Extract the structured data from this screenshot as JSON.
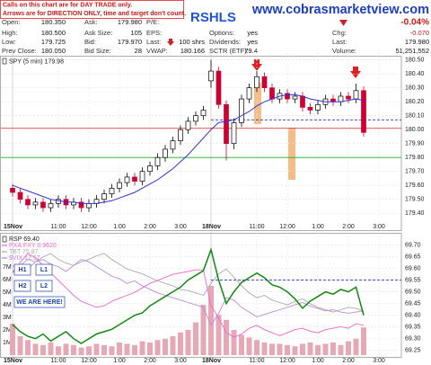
{
  "header": {
    "disclaimer": [
      "Calls on this chart are for DAY TRADE only.",
      "Arrows are for DIRECTION ONLY, time and target don't count."
    ],
    "title": "RSHLS",
    "site": "www.cobrasmarketview.com",
    "columns": [
      [
        {
          "label": "Open:",
          "value": "180.350"
        },
        {
          "label": "High:",
          "value": "180.500"
        },
        {
          "label": "Low:",
          "value": "179.725"
        },
        {
          "label": "Prev Close:",
          "value": "180.050"
        }
      ],
      [
        {
          "label": "Ask:",
          "value": "179.980"
        },
        {
          "label": "Ask Size:",
          "value": "105"
        },
        {
          "label": "Bid:",
          "value": "179.970"
        },
        {
          "label": "Bid Size:",
          "value": "28"
        }
      ],
      [
        {
          "label": "P/E:"
        },
        {
          "label": "EPS:"
        },
        {
          "label": "Last:",
          "value": "100 shrs"
        },
        {
          "label": "VWAP:",
          "value": "180.166"
        }
      ],
      [
        {
          "label": "Options:",
          "value": "yes"
        },
        {
          "label": "Dividends:",
          "value": "yes"
        },
        {
          "label": "SCTR (ETF):",
          "value": "79.4"
        }
      ],
      [
        {
          "value": "-0.04%"
        },
        {
          "label": "Chg:",
          "value": "-0.070"
        },
        {
          "label": "Last:",
          "value": "179.980"
        },
        {
          "label": "Volume:",
          "value": "51,251,552"
        }
      ]
    ]
  },
  "chart_data": [
    {
      "type": "candlestick",
      "legend": "SPY (5 min) 179.98",
      "categories": [
        "15Nov",
        null,
        null,
        null,
        null,
        null,
        "11:00",
        null,
        null,
        null,
        "12:00",
        null,
        null,
        null,
        "1:00",
        null,
        null,
        null,
        "2:00",
        null,
        null,
        null,
        "3:00",
        null,
        null,
        null,
        "18Nov",
        null,
        null,
        null,
        null,
        null,
        "11:00",
        null,
        null,
        null,
        "12:00",
        null,
        null,
        null,
        "1:00",
        null,
        null,
        null,
        "2:00",
        null,
        null,
        null,
        "3:00"
      ],
      "open": [
        179.58,
        179.55,
        179.5,
        179.46,
        179.48,
        179.44,
        179.47,
        179.5,
        179.46,
        179.48,
        179.44,
        179.47,
        179.5,
        179.54,
        179.58,
        179.62,
        179.66,
        179.63,
        179.7,
        179.74,
        179.8,
        179.86,
        179.92,
        180.0,
        180.06,
        180.1,
        180.35,
        180.42,
        180.18,
        179.9,
        180.05,
        180.22,
        180.3,
        180.38,
        180.3,
        180.22,
        180.26,
        180.22,
        180.24,
        180.16,
        180.14,
        180.18,
        180.22,
        180.2,
        180.24,
        180.22,
        180.28,
        null,
        null
      ],
      "high": [
        179.61,
        179.58,
        179.53,
        179.51,
        179.51,
        179.5,
        179.53,
        179.53,
        179.51,
        179.51,
        179.5,
        179.53,
        179.57,
        179.61,
        179.65,
        179.69,
        179.69,
        179.73,
        179.77,
        179.83,
        179.89,
        179.95,
        180.03,
        180.09,
        180.13,
        180.17,
        180.5,
        180.45,
        180.21,
        180.08,
        180.25,
        180.33,
        180.42,
        180.41,
        180.33,
        180.29,
        180.29,
        180.27,
        180.27,
        180.19,
        180.21,
        180.25,
        180.25,
        180.27,
        180.27,
        180.33,
        180.31,
        null,
        null
      ],
      "low": [
        179.52,
        179.47,
        179.43,
        179.43,
        179.41,
        179.41,
        179.44,
        179.43,
        179.43,
        179.41,
        179.41,
        179.44,
        179.47,
        179.51,
        179.55,
        179.59,
        179.6,
        179.6,
        179.67,
        179.71,
        179.77,
        179.83,
        179.89,
        179.97,
        180.03,
        180.07,
        180.3,
        180.15,
        179.78,
        179.86,
        180.02,
        180.19,
        180.27,
        180.27,
        180.19,
        180.19,
        180.19,
        180.19,
        180.13,
        180.11,
        180.11,
        180.15,
        180.17,
        180.17,
        180.19,
        180.19,
        179.95,
        null,
        null
      ],
      "close": [
        179.55,
        179.5,
        179.46,
        179.48,
        179.44,
        179.47,
        179.5,
        179.46,
        179.48,
        179.44,
        179.47,
        179.5,
        179.54,
        179.58,
        179.62,
        179.66,
        179.63,
        179.7,
        179.74,
        179.8,
        179.86,
        179.92,
        180.0,
        180.06,
        180.1,
        180.14,
        180.42,
        180.18,
        179.9,
        180.05,
        180.22,
        180.3,
        180.38,
        180.3,
        180.22,
        180.26,
        180.22,
        180.24,
        180.16,
        180.14,
        180.18,
        180.22,
        180.2,
        180.24,
        180.22,
        180.28,
        179.98,
        null,
        null
      ],
      "ma": {
        "color": "#3333cc",
        "values": [
          179.6,
          179.58,
          179.56,
          179.54,
          179.52,
          179.5,
          179.49,
          179.48,
          179.48,
          179.47,
          179.47,
          179.47,
          179.48,
          179.49,
          179.51,
          179.53,
          179.55,
          179.58,
          179.61,
          179.64,
          179.68,
          179.72,
          179.77,
          179.82,
          179.88,
          179.94,
          180.0,
          180.05,
          180.06,
          180.07,
          180.1,
          180.13,
          180.17,
          180.2,
          180.22,
          180.24,
          180.25,
          180.25,
          180.24,
          180.22,
          180.21,
          180.2,
          180.2,
          180.2,
          180.21,
          180.22,
          180.21,
          null,
          null
        ]
      },
      "up_color": "#000000",
      "down_color": "#cc0033",
      "ylim": [
        179.35,
        180.53
      ],
      "yticks": [
        {
          "value": 180.5,
          "label": "180.50"
        },
        {
          "value": 180.4,
          "label": "180.40"
        },
        {
          "value": 180.3,
          "label": "180.30"
        },
        {
          "value": 180.2,
          "label": "180.20"
        },
        {
          "value": 180.1,
          "label": "180.10"
        },
        {
          "value": 180,
          "label": "180.00"
        },
        {
          "value": 179.9,
          "label": "179.90"
        },
        {
          "value": 179.8,
          "label": "179.80"
        },
        {
          "value": 179.7,
          "label": "179.70"
        },
        {
          "value": 179.6,
          "label": "179.60"
        },
        {
          "value": 179.5,
          "label": "179.50"
        },
        {
          "value": 179.4,
          "label": "179.40"
        }
      ],
      "levels": [
        {
          "value": 180.01,
          "color": "#e04040"
        },
        {
          "value": 180.07,
          "color": "#3030c0",
          "dash": true
        },
        {
          "value": 179.8,
          "color": "#22aa22"
        }
      ],
      "grid": true
    },
    {
      "type": "line",
      "categories": [
        "15Nov",
        null,
        null,
        null,
        null,
        null,
        "11:00",
        null,
        null,
        null,
        "12:00",
        null,
        null,
        null,
        "1:00",
        null,
        null,
        null,
        "2:00",
        null,
        null,
        null,
        "3:00",
        null,
        null,
        null,
        "18Nov",
        null,
        null,
        null,
        null,
        null,
        "11:00",
        null,
        null,
        null,
        "12:00",
        null,
        null,
        null,
        "1:00",
        null,
        null,
        null,
        "2:00",
        null,
        null,
        null,
        "3:00"
      ],
      "series": [
        {
          "name": "RSP 69.40",
          "color": "#118811",
          "values": [
            69.36,
            69.33,
            69.31,
            69.3,
            69.32,
            69.29,
            69.31,
            69.33,
            69.3,
            69.28,
            69.3,
            69.32,
            69.33,
            69.34,
            69.36,
            69.38,
            69.4,
            69.41,
            69.44,
            69.46,
            69.48,
            69.5,
            69.52,
            69.55,
            69.57,
            69.59,
            69.68,
            69.55,
            69.45,
            69.5,
            69.54,
            69.56,
            69.58,
            69.56,
            69.53,
            69.52,
            69.5,
            69.47,
            69.43,
            69.46,
            69.48,
            69.5,
            69.49,
            69.51,
            69.5,
            69.52,
            69.4,
            null,
            null
          ]
        },
        {
          "name": "PXA:FXY 0.9620",
          "color": "#ee66cc",
          "ylim": [
            0.96,
            0.968
          ],
          "values": [
            0.9655,
            0.9662,
            0.9668,
            0.9665,
            0.966,
            0.9655,
            0.965,
            0.9645,
            0.964,
            0.9636,
            0.9634,
            0.9632,
            0.9633,
            0.9636,
            0.9638,
            0.964,
            0.9642,
            0.9645,
            0.9648,
            0.965,
            0.9652,
            0.9654,
            0.9655,
            0.9656,
            0.9657,
            0.9657,
            0.9633,
            0.9625,
            0.9615,
            0.9612,
            0.9614,
            0.9618,
            0.962,
            0.9617,
            0.9615,
            0.9613,
            0.9615,
            0.9617,
            0.9618,
            0.9616,
            0.9615,
            0.9617,
            0.9618,
            0.9619,
            0.9618,
            0.9621,
            0.962,
            null,
            null
          ]
        },
        {
          "name": "TBT 75.87",
          "color": "#aaaaaa",
          "ylim": [
            75.5,
            76.5
          ],
          "values": [
            76.2,
            76.25,
            76.3,
            76.28,
            76.32,
            76.35,
            76.3,
            76.27,
            76.25,
            76.28,
            76.3,
            76.33,
            76.35,
            76.3,
            76.26,
            76.22,
            76.2,
            76.18,
            76.15,
            76.12,
            76.1,
            76.08,
            76.05,
            76.04,
            76.02,
            76.0,
            76.1,
            76.18,
            76.22,
            76.15,
            76.08,
            76.02,
            75.98,
            76.0,
            75.96,
            75.94,
            75.92,
            75.95,
            75.97,
            75.93,
            75.9,
            75.88,
            75.86,
            75.88,
            75.9,
            75.89,
            75.87,
            null,
            null
          ]
        },
        {
          "name": "$VIX 12.57",
          "color": "#b88ad8",
          "ylim": [
            12.2,
            13.2
          ],
          "values": [
            12.95,
            12.9,
            12.92,
            12.98,
            13.0,
            12.96,
            12.94,
            12.9,
            12.95,
            13.0,
            12.98,
            12.94,
            12.9,
            12.86,
            12.84,
            12.8,
            12.82,
            12.78,
            12.75,
            12.72,
            12.7,
            12.68,
            12.66,
            12.64,
            12.62,
            12.6,
            12.45,
            12.55,
            12.68,
            12.66,
            12.6,
            12.56,
            12.52,
            12.54,
            12.56,
            12.58,
            12.6,
            12.62,
            12.64,
            12.61,
            12.59,
            12.57,
            12.58,
            12.56,
            12.55,
            12.56,
            12.57,
            null,
            null
          ]
        }
      ],
      "volume": {
        "color": "#e6a8b4",
        "values": [
          2500000,
          1500000,
          1200000,
          900000,
          800000,
          1000000,
          700000,
          900000,
          800000,
          600000,
          700000,
          900000,
          800000,
          700000,
          1000000,
          900000,
          800000,
          1100000,
          1000000,
          1200000,
          1300000,
          1500000,
          1800000,
          2000000,
          2600000,
          4000000,
          5500000,
          3200000,
          2800000,
          2000000,
          1600000,
          1400000,
          1200000,
          1000000,
          900000,
          900000,
          800000,
          700000,
          900000,
          1000000,
          800000,
          900000,
          1000000,
          800000,
          1100000,
          1300000,
          2200000,
          null,
          null
        ]
      },
      "ylim": [
        69.23,
        69.74
      ],
      "yticks": [
        {
          "value": 69.7,
          "label": "69.70"
        },
        69.65,
        {
          "value": 69.6,
          "label": "69.60"
        },
        69.55,
        {
          "value": 69.5,
          "label": "69.50"
        },
        69.45,
        {
          "value": 69.4,
          "label": "69.40"
        },
        69.35,
        {
          "value": 69.3,
          "label": "69.30"
        },
        69.25
      ],
      "y2lim": [
        0,
        9500000
      ],
      "y2ticks": [
        {
          "value": 7000000,
          "label": "7M"
        },
        {
          "value": 6000000,
          "label": "6M"
        },
        {
          "value": 5000000,
          "label": "5M"
        },
        {
          "value": 4000000,
          "label": "4M"
        },
        {
          "value": 3000000,
          "label": "3M"
        },
        {
          "value": 2000000,
          "label": "2M"
        },
        {
          "value": 1000000,
          "label": "1M"
        }
      ],
      "levels": [
        {
          "value": 69.55,
          "color": "#3030c0",
          "dash": true
        }
      ],
      "annotations": [
        "H1",
        "L1",
        "H2",
        "L2",
        "WE ARE HERE!"
      ],
      "grid": true
    }
  ]
}
